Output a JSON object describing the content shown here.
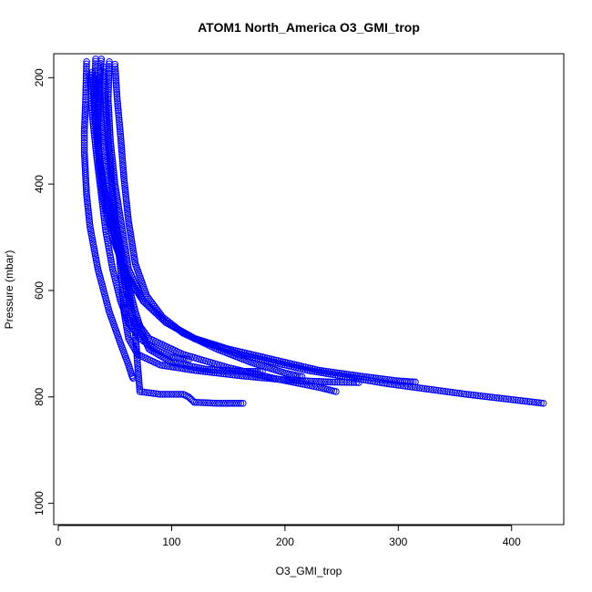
{
  "chart_data": {
    "type": "scatter",
    "title": "ATOM1 North_America O3_GMI_trop",
    "xlabel": "O3_GMI_trop",
    "ylabel": "Pressure (mbar)",
    "xlim": [
      -4,
      446
    ],
    "ylim": [
      1040,
      155
    ],
    "y_inverted": true,
    "x_ticks": [
      0,
      100,
      200,
      300,
      400
    ],
    "x_tick_labels": [
      "0",
      "100",
      "200",
      "300",
      "400"
    ],
    "y_ticks": [
      200,
      400,
      600,
      800,
      1000
    ],
    "y_tick_labels": [
      "200",
      "400",
      "600",
      "800",
      "1000"
    ],
    "grid": false,
    "legend": "none",
    "marker": "open-circle",
    "color": "#0000ff",
    "series": [
      {
        "x": [
          25,
          24,
          23,
          23,
          24,
          25,
          28,
          35,
          45,
          55,
          62,
          65,
          66
        ],
        "y": [
          170,
          250,
          300,
          340,
          380,
          420,
          480,
          560,
          640,
          700,
          740,
          760,
          765
        ]
      },
      {
        "x": [
          38,
          36,
          35,
          36,
          40,
          48,
          60,
          75,
          95,
          120,
          160,
          220,
          290,
          360,
          420,
          428
        ],
        "y": [
          165,
          220,
          290,
          360,
          430,
          500,
          570,
          620,
          660,
          690,
          720,
          750,
          775,
          795,
          810,
          812
        ]
      },
      {
        "x": [
          33,
          32,
          34,
          38,
          44,
          52,
          62,
          68,
          70,
          72,
          90,
          110,
          115,
          120,
          140,
          163
        ],
        "y": [
          165,
          230,
          300,
          380,
          450,
          520,
          600,
          680,
          740,
          790,
          795,
          795,
          800,
          810,
          812,
          812
        ]
      },
      {
        "x": [
          45,
          44,
          46,
          50,
          56,
          62,
          75,
          95,
          120,
          150,
          190,
          230,
          270,
          300,
          315
        ],
        "y": [
          170,
          240,
          320,
          400,
          480,
          560,
          620,
          660,
          690,
          710,
          730,
          750,
          762,
          770,
          772
        ]
      },
      {
        "x": [
          40,
          42,
          45,
          48,
          52,
          56,
          58,
          62,
          70,
          90,
          120,
          160,
          200,
          240,
          265
        ],
        "y": [
          180,
          260,
          340,
          420,
          500,
          580,
          640,
          690,
          720,
          740,
          750,
          760,
          768,
          772,
          773
        ]
      },
      {
        "x": [
          30,
          32,
          35,
          40,
          47,
          55,
          60,
          66,
          80,
          110,
          150,
          190,
          230,
          245
        ],
        "y": [
          190,
          260,
          330,
          400,
          470,
          540,
          600,
          650,
          690,
          720,
          745,
          765,
          782,
          790
        ]
      },
      {
        "x": [
          50,
          52,
          55,
          58,
          62,
          68,
          78,
          92,
          110,
          140,
          170,
          200,
          215
        ],
        "y": [
          175,
          240,
          310,
          390,
          470,
          550,
          610,
          650,
          680,
          710,
          735,
          755,
          762
        ]
      },
      {
        "x": [
          28,
          30,
          34,
          38,
          42,
          48,
          55,
          62,
          72,
          85,
          100,
          115
        ],
        "y": [
          195,
          270,
          350,
          420,
          490,
          560,
          620,
          660,
          690,
          710,
          725,
          730
        ]
      },
      {
        "x": [
          36,
          38,
          42,
          48,
          55,
          62,
          68,
          74,
          80,
          100,
          130,
          160,
          180
        ],
        "y": [
          200,
          280,
          360,
          440,
          520,
          590,
          640,
          680,
          710,
          735,
          748,
          752,
          752
        ]
      }
    ]
  }
}
